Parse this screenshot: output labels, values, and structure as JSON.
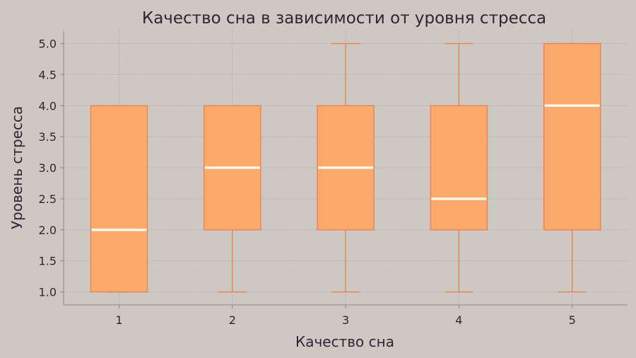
{
  "chart_data": {
    "type": "box",
    "title": "Качество сна в зависимости от уровня стресса",
    "xlabel": "Качество сна",
    "ylabel": "Уровень стресса",
    "categories": [
      "1",
      "2",
      "3",
      "4",
      "5"
    ],
    "boxes": [
      {
        "category": "1",
        "whisker_low": 1.0,
        "q1": 1.0,
        "median": 2.0,
        "q3": 4.0,
        "whisker_high": 4.0
      },
      {
        "category": "2",
        "whisker_low": 1.0,
        "q1": 2.0,
        "median": 3.0,
        "q3": 4.0,
        "whisker_high": 4.0
      },
      {
        "category": "3",
        "whisker_low": 1.0,
        "q1": 2.0,
        "median": 3.0,
        "q3": 4.0,
        "whisker_high": 5.0
      },
      {
        "category": "4",
        "whisker_low": 1.0,
        "q1": 2.0,
        "median": 2.5,
        "q3": 4.0,
        "whisker_high": 5.0
      },
      {
        "category": "5",
        "whisker_low": 1.0,
        "q1": 2.0,
        "median": 4.0,
        "q3": 5.0,
        "whisker_high": 5.0
      }
    ],
    "yticks": [
      "1.0",
      "1.5",
      "2.0",
      "2.5",
      "3.0",
      "3.5",
      "4.0",
      "4.5",
      "5.0"
    ],
    "ylim": [
      0.79,
      5.2
    ],
    "grid": true,
    "colors": {
      "background": "#cdc8c1",
      "box_fill": "#fcaa6c",
      "box_edge": "#ea855a",
      "median": "#fdf7ee",
      "grid": "#a9a2ad",
      "axis": "#8e8790",
      "text": "#2e2638"
    }
  }
}
